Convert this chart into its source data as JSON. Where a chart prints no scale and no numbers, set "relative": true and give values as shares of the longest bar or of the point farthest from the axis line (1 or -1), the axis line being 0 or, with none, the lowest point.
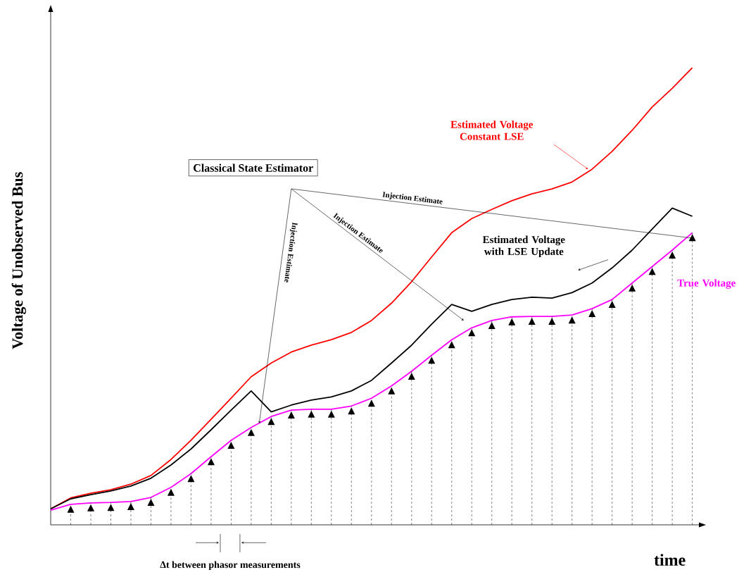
{
  "chart_data": {
    "type": "line",
    "relative": true,
    "xlabel": "time",
    "ylabel": "Voltage of Unobserved Bus",
    "categories": [
      null,
      null,
      null,
      null,
      null,
      null,
      null,
      null,
      null,
      null,
      null,
      null,
      null,
      null,
      null,
      null,
      null,
      null,
      null,
      null,
      null,
      null,
      null,
      null,
      null,
      null,
      null,
      null,
      null,
      null,
      null,
      null,
      null
    ],
    "series": [
      {
        "name": "Estimated Voltage Constant LSE",
        "color": "#ff0000",
        "values": [
          0.035,
          0.059,
          0.069,
          0.077,
          0.089,
          0.108,
          0.143,
          0.185,
          0.231,
          0.277,
          0.324,
          0.354,
          0.378,
          0.393,
          0.405,
          0.421,
          0.447,
          0.485,
          0.532,
          0.586,
          0.639,
          0.67,
          0.69,
          0.709,
          0.724,
          0.735,
          0.75,
          0.778,
          0.817,
          0.863,
          0.914,
          0.955,
          1.0
        ]
      },
      {
        "name": "Estimated Voltage with LSE Update",
        "color": "#000000",
        "values": [
          0.035,
          0.057,
          0.066,
          0.074,
          0.085,
          0.102,
          0.131,
          0.166,
          0.208,
          0.251,
          0.293,
          0.247,
          0.262,
          0.273,
          0.28,
          0.293,
          0.316,
          0.354,
          0.393,
          0.439,
          0.482,
          0.467,
          0.482,
          0.493,
          0.498,
          0.496,
          0.508,
          0.529,
          0.562,
          0.601,
          0.647,
          0.693,
          0.675
        ]
      },
      {
        "name": "True Voltage",
        "color": "#ff00ff",
        "values": [
          0.032,
          0.045,
          0.048,
          0.049,
          0.051,
          0.06,
          0.082,
          0.112,
          0.149,
          0.185,
          0.213,
          0.237,
          0.251,
          0.253,
          0.253,
          0.26,
          0.277,
          0.304,
          0.336,
          0.371,
          0.405,
          0.431,
          0.447,
          0.455,
          0.456,
          0.456,
          0.459,
          0.473,
          0.493,
          0.529,
          0.565,
          0.601,
          0.639
        ]
      }
    ],
    "annotations": [
      "Classical State Estimator",
      "Injection Estimate",
      "Injection Estimate",
      "Injection Estimate",
      "Δt between phasor measurements"
    ]
  }
}
